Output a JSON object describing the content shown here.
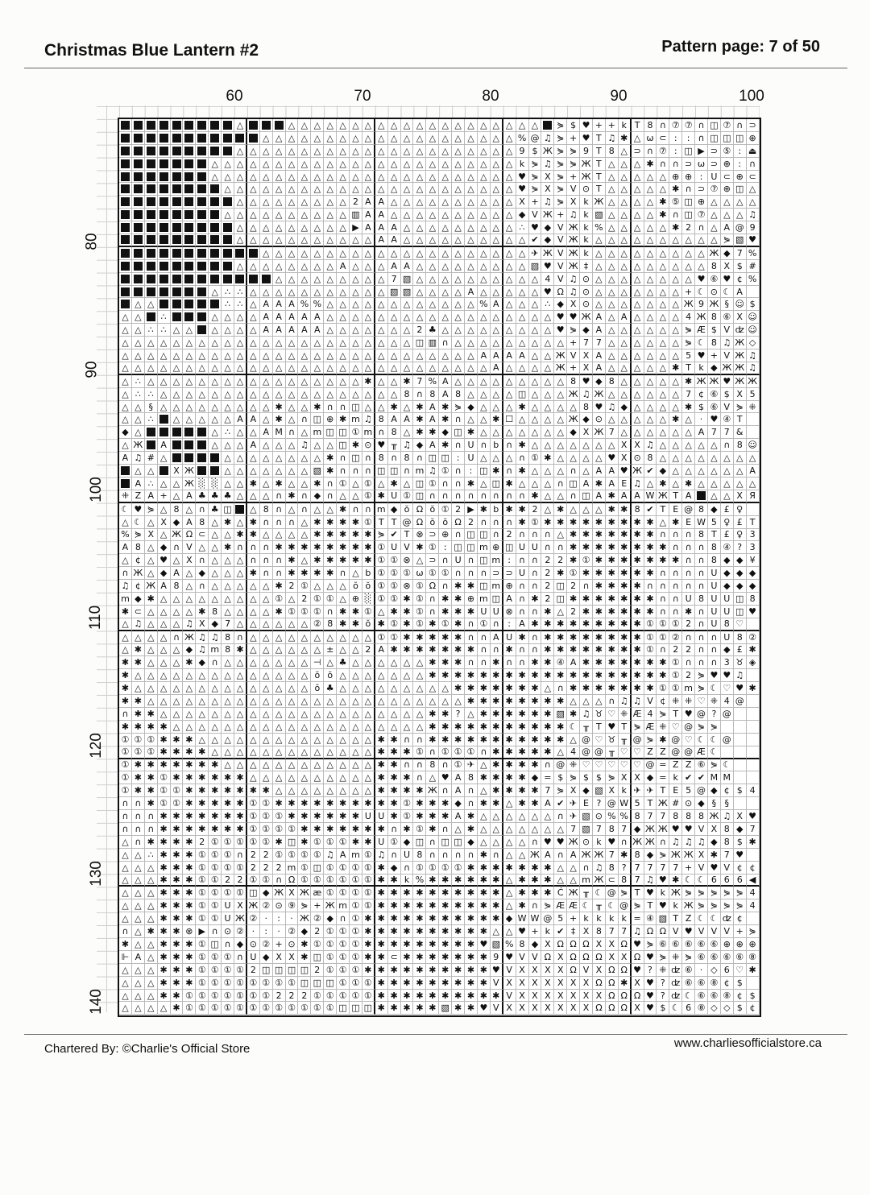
{
  "header": {
    "title": "Christmas Blue Lantern #2",
    "page": "Pattern page: 7 of 50"
  },
  "footer": {
    "credit": "Chartered By: ©Charlie's Official Store",
    "website": "www.charliesofficialstore.ca"
  },
  "column_labels": [
    "60",
    "70",
    "80",
    "90",
    "100"
  ],
  "row_labels": [
    "80",
    "90",
    "100",
    "110",
    "120",
    "130",
    "140"
  ],
  "chart": {
    "first_column": 51,
    "first_row": 71,
    "rows": [
      "■■■■■■■■■△■■■△△△△△△△△△△△△△△△△△△△△■⋟$♥++kT8∩⑦⑦∩◫⑦∩⊃◫◫",
      "■■■■■■■■■■■△△△△△△△△△△△△△△△△△△△△%@♫⋟+♥T♫✱△ω⊂::∩◫◫◫⊕",
      "■■■■■■■■■△△△△△△△△△△△△△△△△△△△△△△9$Ж⋟⋟9T8△⊃∩⑦:◫▶⊃⑤:⏏",
      "■■■■■■■△△△△△△△△△△△△△△△△△△△△△△△△k⋟♫⋟⋟ЖT△△△✱∩∩⊃ω⊃⊕:∩",
      "■■■■■■■△△△△△△△△△△△△△△△△△△△△△△△△♥⋟X⋟+ЖT△△△△△⊕⊕:U⊂⊕⊂",
      "■■■■■■■■△△△△△△△△△△△△△△△△△△△△△△△♥⋟X⋟V⊙T△△△△△✱∩⊃⑦⊕◫△",
      "■■■■■■■■■△△△△△△△△△2AA△△△△△△△△△△X+♫⋟XkЖ△△△△✱⑤◫⊕△△△△",
      "■■■■■■■■△△△△△△△△△△▥AA△△△△△△△△△△◆VЖ+♫k▧△△△△✱∩◫⑦△△△♫",
      "■■■■■■■■■△△△△△△△△△▶AAA△△△△△△△△△∴♥◆VЖk%△△△△△✱2∩△A@9",
      "■■■■■■■■■△△△△△△△△△△△AA△△△△△△△△△△✔◆VЖk△△△△△△△△△△⋟▧♥",
      "■■■■■■■■■■■△△△△△△△△△△△△△△△△△△△△△✈ЖVЖk△△△△△△△△△Ж◆7%",
      "■■■■■■■■■△△△△△△△△A△△△AA△△△△△△△△△▧♥VЖ‡△△△△△△△△△8X$#",
      "■■■■■■■■■■■■△△△△△△△△△7▧△△△△△△△△△△4V♫⊙△△△△△△△△♥⑥♥¢%",
      "■■■■■■■△∴∴△△△△△△△△△△△▧▧△△△△A△△△△△♥Ω♫⊙△△△△△△△+☾⊙☾A",
      "■△△■■■■■∴∴△AAA%%△△△△△△△△△△△△%A△△△∴◆X⊙△△△△△△△Ж9Ж§☺$",
      "△△■∴■■■△△△△AAAAA△△△△△△△△△△△△△△△△△△♥♥ЖA△A△△△△4Ж8⑥X☺",
      "△△∴∴△△■△△△△AAAAA△△△△△△△2♣△△△△△△△△△♥⋟◆A△△△△△△⋟Æ$Vʣ☺",
      "△△△△△△△△△△△△△△△△△△△△△△△◫▥∩△△△△△△△△△+77△△△△△△⋟☾8♫Ж◇",
      "△△△△△△△△△△△△△△△△△△△△△△△△△△△△AAAA△△ЖVXA△△△△△△5♥+VЖ♫",
      "△△△△△△△△△△△△△△△△△△△△△△△△△△△△△A△△△△Ж+XA△△△△△✱Tk◆ЖЖ♫",
      "△∴△△△△△△△△△△△△△△△△△✱△△✱7%A△△△△△△△△△8♥◆8△△△△△✱ЖЖ♥ЖЖ",
      "△∴∴△△△△△△△△△△△△△△△△△△△8∩8A8△△△△◫△△△Ж♫Ж△△△△△△7¢⑥$X5",
      "△△§△△△△△△△△△✱△△✱∩∩◫△△✱△✱A✱⋟◆△△△✱△△△△8♥♫◆△△△△✱$⑥V⋟⁜",
      "△△∴■△△△△△AA△✱△∩◫⊕✱m♫8AA✱A✱∩△△✱☐△△△△Ж◆⊙△△△△△✱△·♥④T",
      "◆△■■■■■△∴△△AM∩△m◫◫①m∩8△✱✱◆◫✱△△△△△△△◆XЖ7△△△△△△A77&",
      "△Ж■A■■■△△△A△△△♫△△◫✱⊙♥╥♫◆A✱∩U∩b∩✱△△△△△△△XX♫△△△△△∩8☺",
      "A♫#△■■■■△△△△△△△△✱∩◫∩8∩8∩◫◫:U△△△∩①✱△△△△♥X⊙8△△△△△△△△",
      "■△△■XЖ■■△△△△△△△▧✱∩∩∩◫◫∩m♫①∩:◫✱∩✱△△△∩△AA♥Ж✔◆△△△△△△A",
      "■A∴△△Ж░░△△✱△✱△△✱∩①△①△✱△◫①∩∩✱△◫✱△△△∩◫A✱AE♫△✱△✱△△△△△",
      "⁜ZA+△A♣♣♣△△△∩✱∩◆∩△△①✱U①◫∩∩∩∩∩∩∩∩✱△△∩◫A✱AAWЖTA■△△XЯ",
      "☾♥⋟△8△∩♣◫■△8∩△∩△△✱∩∩m◆ŏΩŏ①2▶✱b✱✱2△✱△△△✱✱8✔TE@8◆£♀",
      "△☾△X◆A8△✱△✱∩∩∩△✱✱✱✱①TT@ΩŏŏΩ2∩∩∩✱①✱✱✱✱✱✱✱✱✱△✱EW5♀£T",
      "%⋟X△ЖΩ⊂△△✱✱△△△△✱✱✱✱✱⋟✔T⊗⊃⊕∩◫◫∩2∩∩∩△✱✱✱✱✱✱✱∩∩∩8T£♀3",
      "A8△◆∩V△△✱∩∩∩✱✱✱✱✱✱✱✱①UV✱①:◫◫m⊕◫UU∩∩✱✱✱✱✱✱✱✱∩∩∩8④?3",
      "△¢△♥△X∩△△△∩∩∩✱△✱✱✱✱✱①①⊗△⊃∩U∩◫m:∩∩22✱①✱✱✱✱✱✱✱∩∩8◆◆¥",
      "∩Ж△◆A△◆△△△✱∩∩✱✱✱✱∩△b①①①ω①①∩∩∩⊃⊃U∩2✱①✱✱✱✱✱✱∩∩∩∩U◆◆◆",
      "♫¢ЖA8△∩△△△△△✱2①△△△ŏŏ①①⊗①Ω∩✱✱◫m⊕∩∩2◫2∩✱✱✱✱∩∩∩∩∩U◆◆◆",
      "m◆✱△△△△△△△△△①△2①①△⊕░①①✱①∩✱✱⊕m◫A∩✱2◫✱✱✱✱✱✱✱∩∩U8UU◫8",
      "✱⊂△△△△✱8△△△△✱①①①∩✱✱①△✱✱①∩✱✱✱UU⊗∩∩✱△2✱✱✱✱✱✱∩∩✱∩UU◫♥",
      "△♫△△△♫X◆7△△△△△△②8✱✱ŏ✱①✱①✱①✱∩①∩:A✱✱✱✱✱✱✱✱✱①①①2∩U8♡",
      "△△△△∩Ж♫♫8∩△△△△△△△△△△①①✱✱✱✱✱∩∩AU✱∩✱✱✱✱✱✱✱✱①①②∩∩∩U8②",
      "△✱△△△◆♫m8✱△△△△△△±△△2A✱✱✱✱✱✱✱∩∩✱∩∩✱✱✱✱✱✱✱✱①∩22∩∩◆£✱",
      "✱✱△△△✱◆∩△△△△△△△⊣△♣△△△△△△✱✱✱∩∩✱∩∩✱✱④A✱✱✱✱✱✱✱①∩∩∩3♉◈",
      "✱△△△△△△△△△△△△△△ŏŏ△△△△△△△✱✱✱✱✱✱✱✱✱✱✱✱✱✱✱✱✱✱✱①2⋟♥♥♫",
      "✱△△△△△△△△△△△△△△ŏ♣△△△△△△△△△✱✱✱✱✱✱✱△∩✱✱✱✱✱✱✱①①m⋟☾♡♥✱",
      "✱✱△△△△△△△△△△△△△△△△△△△△△△△△△✱✱✱✱✱✱✱✱△△△∩♫♫V¢⁜⁜♡⁜4@",
      "∩✱✱△△△△△△△△△△△△△△△△△△△△△✱✱?△✱✱✱✱✱✱▧✱♫♉♡⁜Æ4⋟T♥@?@",
      "✱✱✱✱△△△△△△△△△△△△△△△△△△△△✱✱✱✱✱✱✱✱✱✱✱☾╥T♥T⋟Æ⁜♡@⋟⋟",
      "①①①✱✱✱△△△△△△△△△△△△△△✱✱∩∩✱✱✱✱✱✱✱✱✱✱✱△@♡♉╥@⋟✱@♡☾☾@",
      "①①①✱✱✱✱△△△△△△△△△△△△△✱✱✱①∩①①①∩✱✱✱✱✱△4@@╥♡♡ZZ@@Æ☾",
      "①✱✱✱✱✱✱✱△△△△△△△△△△△△✱✱∩∩8∩①✈△✱✱✱✱∩@⁜♡♡♡♡♡@=ZZ⑥⋟☾",
      "①✱✱①✱✱✱✱✱✱△△△△△△△△△△✱✱✱∩△♥A8✱✱✱✱◆=$⋟$$⋟XX◆=k✔✔MM",
      "①✱✱①①✱✱✱✱✱✱✱△△△△△△△△✱✱✱✱Ж∩A∩△✱✱✱✱7⋟X◆▧Xk✈✈TE5@◆¢$4",
      "∩∩✱①①✱✱✱✱✱①①✱✱✱✱✱✱✱✱✱✱①✱✱✱◆∩✱✱△✱✱A✔✈E?@W5TЖ#⊙◆§§",
      "∩∩∩✱✱✱✱✱✱✱①①①✱✱✱✱✱✱UU✱①✱✱✱A✱△△△△△△∩✈▧⊙%%877888Ж♫X♥",
      "∩∩∩✱✱✱✱✱✱✱①①①①✱✱✱✱✱✱✱∩✱①✱∩△✱△△△△△△△7▧787◆ЖЖ♥♥VX8◆7",
      "△∩✱✱✱✱2①①①①①✱◫✱①①①✱✱U①◆◫∩◫◫◆△△△△∩♥♥Ж⊙k♥∩ЖЖ∩♫♫♫◆8$✱",
      "△△∴✱✱✱①①①∩22①①①①♫Am①♫∩U8∩∩∩∩✱∩△△ЖA∩AЖЖ7✱8◆⋟ЖЖX✱7♥",
      "△△△✱✱✱①①①①222m①◫①①①①✱◆∩①①①①✱✱✱✱✱✱✱△△∩♫8?7777+V♥V¢¢",
      "△△△✱✱✱①①22①①∩Ω①①①①①①✱✱k%✱✱✱✱✱✱△✱✱✱△△mЖ⊂87♫♥✱☾☾666◀¢",
      "△△△✱✱✱①①①①◫◆ЖXЖæ①①①①✱✱✱✱✱✱✱✱✱✱△✱✱✱ĆЖ╥☾@⋟T♥kЖ⋟⋟⋟⋟⋟4",
      "△△△✱✱✱①①UXЖ②⊙⑨⋟+Жm①①✱✱✱✱✱✱✱✱✱✱△✱∩⋟ÆÆ☾╥☾@⋟T♥kЖ⋟⋟⋟⋟4",
      "△△△✱✱✱①①UЖ②·:·Ж②◆∩①✱✱✱✱✱✱✱✱✱✱✱◆WW@5+kkkk=④▧TZ☾☾ʣ¢",
      "∩△✱✱✱⊗▶∩⊙②·:·②◆2①①①✱✱✱✱✱✱✱✱✱✱△△♥+k✔‡X877♫ΩΩV♥VVV+⋟",
      "✱△△✱✱✱①◫∩◆⊙②+⊙✱①①①①✱✱✱✱✱✱✱✱✱♥▧%8◆XΩΩΩXXΩ♥⋟⑥⑥⑥⑥⑥⊕⊕⊕",
      "⊩A△✱✱✱①①①∩U◆XX✱◫①①①✱✱⊂✱✱✱✱✱✱✱9♥VVΩXΩΩΩXXΩ♥⋟⁜⋟⑥⑥⑥⑥⑧",
      "△△△✱✱✱①①①①2◫◫◫◫2①①①✱✱✱✱✱✱✱✱✱✱♥VXXXXΩVXΩΩ♥?⁜ʣ⑥·◇6♡✱",
      "△△△✱✱✱①①①①①①①①◫◫◫①①①✱✱✱✱✱✱✱✱✱VXXXXXXXΩΩ✱X♥?ʣ⑥⑥⑧¢$",
      "△△△✱✱①①①①①①①222①①①①①✱✱✱✱✱✱✱✱✱✱VXXXXXXXΩΩΩ♥?ʣ☾⑥⑥⑧¢$",
      "△△△△✱①①①①①①①①①①①①◫◫◫✱✱✱✱✱▧✱✱♥VXXXXXXXΩΩΩX♥$☾6⑧◇◇$¢"
    ]
  }
}
